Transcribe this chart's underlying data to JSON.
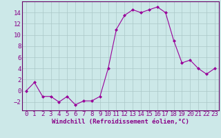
{
  "x": [
    0,
    1,
    2,
    3,
    4,
    5,
    6,
    7,
    8,
    9,
    10,
    11,
    12,
    13,
    14,
    15,
    16,
    17,
    18,
    19,
    20,
    21,
    22,
    23
  ],
  "y": [
    0,
    1.5,
    -1,
    -1,
    -2,
    -1,
    -2.5,
    -1.8,
    -1.8,
    -1,
    4,
    11,
    13.5,
    14.5,
    14,
    14.5,
    15,
    14,
    9,
    5,
    5.5,
    4,
    3,
    4
  ],
  "line_color": "#990099",
  "marker_color": "#990099",
  "bg_color": "#cce8e8",
  "grid_color": "#aac8c8",
  "xlabel": "Windchill (Refroidissement éolien,°C)",
  "ylabel": "",
  "ylim": [
    -3.5,
    16
  ],
  "xlim": [
    -0.5,
    23.5
  ],
  "yticks": [
    -2,
    0,
    2,
    4,
    6,
    8,
    10,
    12,
    14
  ],
  "xticks": [
    0,
    1,
    2,
    3,
    4,
    5,
    6,
    7,
    8,
    9,
    10,
    11,
    12,
    13,
    14,
    15,
    16,
    17,
    18,
    19,
    20,
    21,
    22,
    23
  ],
  "axis_color": "#660066",
  "font_color": "#880088",
  "xlabel_fontsize": 6.5,
  "tick_fontsize": 6.5
}
